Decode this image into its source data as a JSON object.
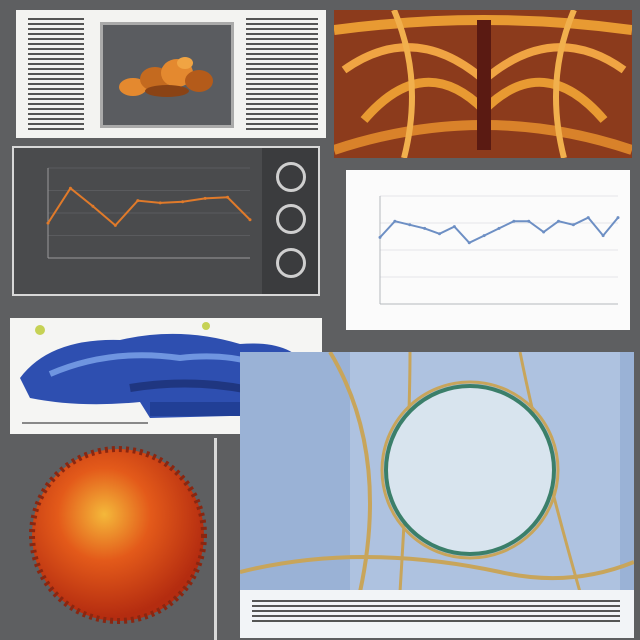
{
  "panels": {
    "doc_3d_render": {
      "kind": "document-with-3d-render",
      "colors": {
        "paper": "#f3f3f1",
        "render": "#e4892f"
      }
    },
    "orange_fibers": {
      "kind": "illustration",
      "colors": {
        "main": "#e89a32",
        "dark": "#6a2418"
      }
    },
    "dark_chart": {
      "kind": "line-chart-dark",
      "colors": {
        "bg": "#4a4b4d",
        "line": "#e07a2a"
      }
    },
    "light_chart": {
      "kind": "line-chart-light",
      "colors": {
        "bg": "#fbfbfb",
        "line": "#6d8fc4"
      }
    },
    "blue_structure": {
      "kind": "illustration",
      "colors": {
        "main": "#2e4fb0",
        "light": "#6f95e0"
      }
    },
    "orange_cell": {
      "kind": "illustration",
      "colors": {
        "outer": "#cc3b12",
        "core": "#f4b83a"
      }
    },
    "blue_cell": {
      "kind": "illustration",
      "colors": {
        "bg": "#9ab2d6",
        "cell": "#d8e4ee",
        "veins": "#c8a55b"
      }
    }
  },
  "icons": [
    "circle-icon-top",
    "circle-icon-middle",
    "circle-icon-bottom"
  ],
  "chart_data": [
    {
      "type": "line",
      "x": [
        1,
        2,
        3,
        4,
        5,
        6,
        7,
        8,
        9,
        10
      ],
      "series": [
        {
          "values": [
            3.1,
            6.2,
            4.6,
            2.9,
            5.1,
            4.9,
            5.0,
            5.3,
            5.4,
            3.4
          ]
        }
      ],
      "ylim": [
        0,
        8
      ],
      "grid": true,
      "title": "",
      "xlabel": "",
      "ylabel": ""
    },
    {
      "type": "line",
      "x": [
        1,
        2,
        3,
        4,
        5,
        6,
        7,
        8,
        9,
        10,
        11,
        12,
        13,
        14,
        15,
        16,
        17
      ],
      "series": [
        {
          "values": [
            3.7,
            4.6,
            4.4,
            4.2,
            3.9,
            4.3,
            3.4,
            3.8,
            4.2,
            4.6,
            4.6,
            4.0,
            4.6,
            4.4,
            4.8,
            3.8,
            4.8
          ]
        }
      ],
      "ylim": [
        0,
        6
      ],
      "grid": true,
      "title": "",
      "xlabel": "",
      "ylabel": ""
    }
  ]
}
